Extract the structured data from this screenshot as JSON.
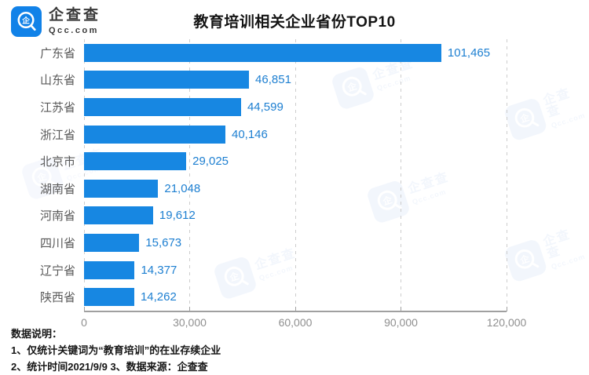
{
  "header": {
    "logo_name": "企查查",
    "logo_sub": "Qcc.com",
    "title": "教育培训相关企业省份TOP10"
  },
  "chart_data": {
    "type": "bar",
    "orientation": "horizontal",
    "title": "教育培训相关企业省份TOP10",
    "categories": [
      "广东省",
      "山东省",
      "江苏省",
      "浙江省",
      "北京市",
      "湖南省",
      "河南省",
      "四川省",
      "辽宁省",
      "陕西省"
    ],
    "values": [
      101465,
      46851,
      44599,
      40146,
      29025,
      21048,
      19612,
      15673,
      14377,
      14262
    ],
    "value_labels": [
      "101,465",
      "46,851",
      "44,599",
      "40,146",
      "29,025",
      "21,048",
      "19,612",
      "15,673",
      "14,377",
      "14,262"
    ],
    "xlim": [
      0,
      120000
    ],
    "x_ticks": [
      0,
      30000,
      60000,
      90000,
      120000
    ],
    "x_tick_labels": [
      "0",
      "30,000",
      "60,000",
      "90,000",
      "120,000"
    ],
    "grid": "vertical-dashed",
    "legend": "none",
    "bar_color": "#1787e2",
    "value_color": "#1d7fd1",
    "label_color": "#595959"
  },
  "footer": {
    "heading": "数据说明：",
    "note1": "1、仅统计关键词为“教育培训”的在业存续企业",
    "note2": "2、统计时间2021/9/9   3、数据来源：企查查"
  },
  "watermark": {
    "name": "企查查",
    "sub": "Qcc.com"
  },
  "brand": {
    "logo_blue": "#1182e8"
  }
}
